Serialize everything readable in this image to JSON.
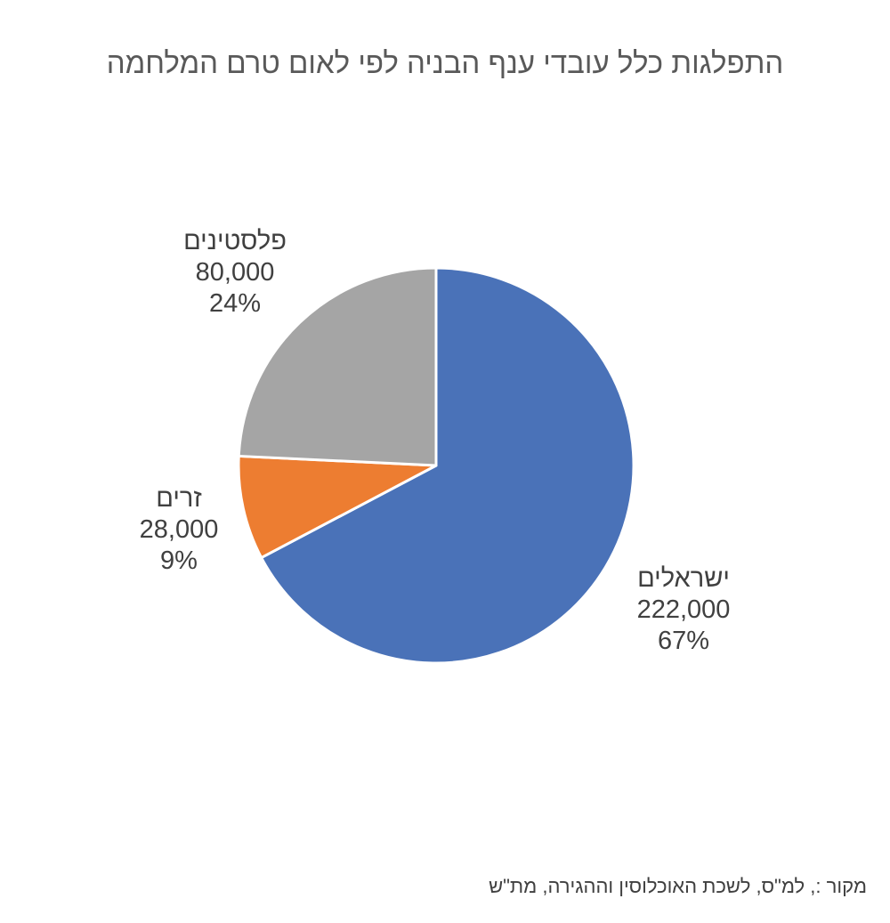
{
  "chart_data": {
    "type": "pie",
    "title": "התפלגות כלל עובדי ענף הבניה לפי לאום טרם המלחמה",
    "slices": [
      {
        "label": "ישראלים",
        "value": 222000,
        "value_text": "222,000",
        "percent": 67,
        "percent_text": "67%",
        "color": "#4A72B8"
      },
      {
        "label": "זרים",
        "value": 28000,
        "value_text": "28,000",
        "percent": 9,
        "percent_text": "9%",
        "color": "#ED7D31"
      },
      {
        "label": "פלסטינים",
        "value": 80000,
        "value_text": "80,000",
        "percent": 24,
        "percent_text": "24%",
        "color": "#A5A5A5"
      }
    ],
    "start_angle_deg": 0,
    "direction": "clockwise",
    "legend": "none",
    "labels": "outside"
  },
  "source_note": "מקור :,  למ\"ס, לשכת האוכלוסין וההגירה, מת\"ש"
}
